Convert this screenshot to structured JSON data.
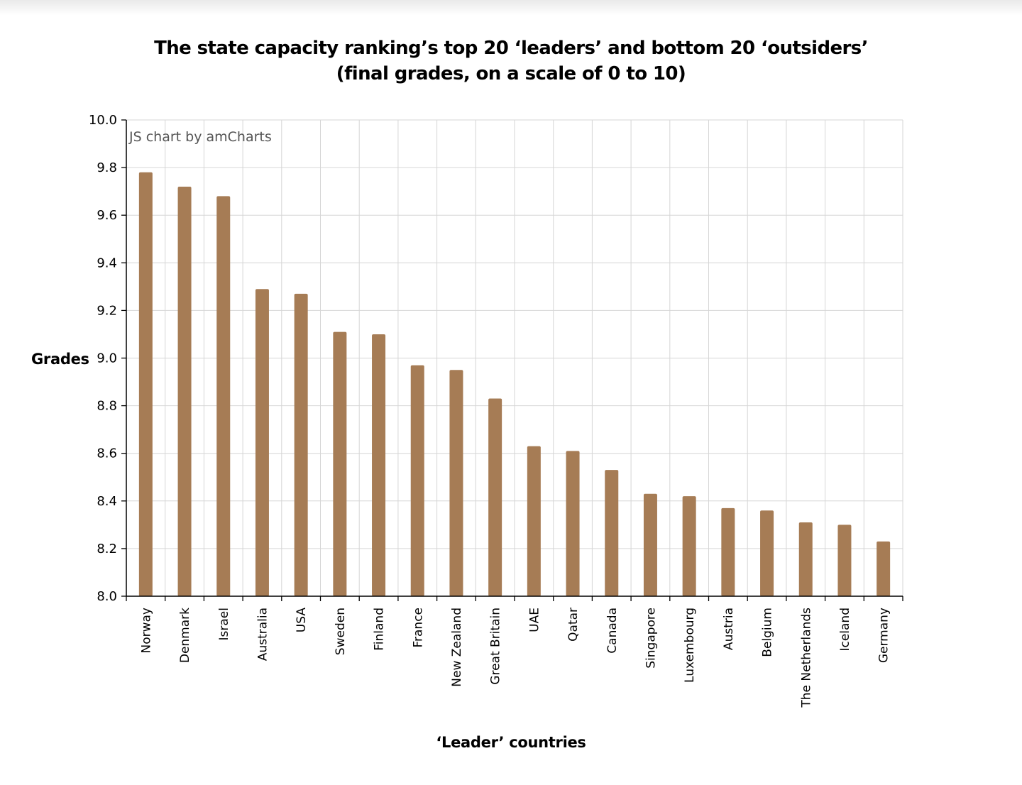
{
  "chart_data": {
    "type": "bar",
    "title": "The state capacity ranking’s top 20 ‘leaders’ and bottom 20 ‘outsiders’",
    "subtitle": "(final grades, on a scale of 0 to 10)",
    "xlabel": "‘Leader’ countries",
    "ylabel": "Grades",
    "credit": "JS chart by amCharts",
    "ylim": [
      8.0,
      10.0
    ],
    "yticks": [
      "8.0",
      "8.2",
      "8.4",
      "8.6",
      "8.8",
      "9.0",
      "9.2",
      "9.4",
      "9.6",
      "9.8",
      "10.0"
    ],
    "grid": true,
    "bar_color": "#a67c55",
    "categories": [
      "Norway",
      "Denmark",
      "Israel",
      "Australia",
      "USA",
      "Sweden",
      "Finland",
      "France",
      "New Zealand",
      "Great Britain",
      "UAE",
      "Qatar",
      "Canada",
      "Singapore",
      "Luxembourg",
      "Austria",
      "Belgium",
      "The Netherlands",
      "Iceland",
      "Germany"
    ],
    "values": [
      9.78,
      9.72,
      9.68,
      9.29,
      9.27,
      9.11,
      9.1,
      8.97,
      8.95,
      8.83,
      8.63,
      8.61,
      8.53,
      8.43,
      8.42,
      8.37,
      8.36,
      8.31,
      8.3,
      8.23
    ]
  }
}
